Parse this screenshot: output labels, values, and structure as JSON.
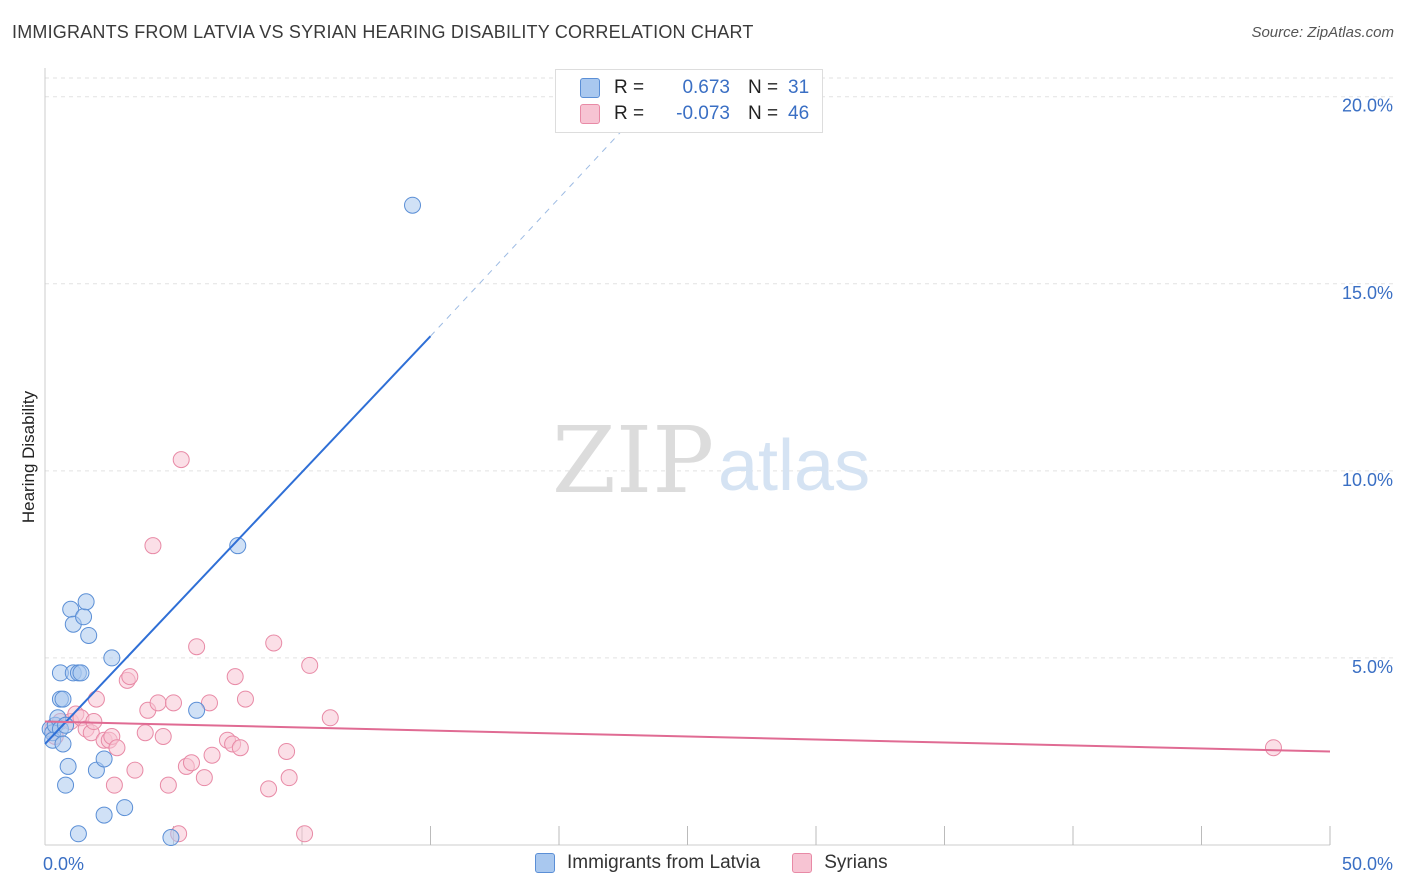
{
  "header": {
    "title": "IMMIGRANTS FROM LATVIA VS SYRIAN HEARING DISABILITY CORRELATION CHART",
    "source": "Source: ZipAtlas.com"
  },
  "watermark": {
    "part1": "ZIP",
    "part2": "atlas"
  },
  "legend": {
    "rows": [
      {
        "r_label": "R =",
        "r_value": "0.673",
        "n_label": "N =",
        "n_value": "31",
        "color": "#a9c8ef",
        "border": "#5b8fd6"
      },
      {
        "r_label": "R =",
        "r_value": "-0.073",
        "n_label": "N =",
        "n_value": "46",
        "color": "#f7c4d3",
        "border": "#e88aa6"
      }
    ]
  },
  "bottom_legend": {
    "items": [
      {
        "label": "Immigrants from Latvia",
        "color": "#a9c8ef",
        "border": "#5b8fd6"
      },
      {
        "label": "Syrians",
        "color": "#f7c4d3",
        "border": "#e88aa6"
      }
    ]
  },
  "chart_data": {
    "type": "scatter",
    "title": "IMMIGRANTS FROM LATVIA VS SYRIAN HEARING DISABILITY CORRELATION CHART",
    "xlabel": "",
    "ylabel": "Hearing Disability",
    "xlim": [
      0,
      50
    ],
    "ylim": [
      0,
      20.5
    ],
    "x_tick_labels": [
      "0.0%",
      "50.0%"
    ],
    "y_ticks": [
      5,
      10,
      15,
      20
    ],
    "y_tick_labels": [
      "5.0%",
      "10.0%",
      "15.0%",
      "20.0%"
    ],
    "series": [
      {
        "name": "Immigrants from Latvia",
        "color": "#5b8fd6",
        "fill": "#a9c8ef",
        "trend": {
          "x0": 0,
          "y0": 2.7,
          "x1": 15,
          "y1": 13.6,
          "dash_x1": 23,
          "dash_y1": 19.5,
          "color": "#2f6fd6"
        },
        "points": [
          [
            0.2,
            3.1
          ],
          [
            0.3,
            3.0
          ],
          [
            0.4,
            3.2
          ],
          [
            0.5,
            3.4
          ],
          [
            0.3,
            2.8
          ],
          [
            0.6,
            3.9
          ],
          [
            0.7,
            3.9
          ],
          [
            0.6,
            3.1
          ],
          [
            0.8,
            3.2
          ],
          [
            0.6,
            4.6
          ],
          [
            1.1,
            4.6
          ],
          [
            1.3,
            4.6
          ],
          [
            1.4,
            4.6
          ],
          [
            1.0,
            6.3
          ],
          [
            1.1,
            5.9
          ],
          [
            1.5,
            6.1
          ],
          [
            1.6,
            6.5
          ],
          [
            1.7,
            5.6
          ],
          [
            0.7,
            2.7
          ],
          [
            0.9,
            2.1
          ],
          [
            0.8,
            1.6
          ],
          [
            1.3,
            0.3
          ],
          [
            2.0,
            2.0
          ],
          [
            2.3,
            0.8
          ],
          [
            2.3,
            2.3
          ],
          [
            2.6,
            5.0
          ],
          [
            3.1,
            1.0
          ],
          [
            4.9,
            0.2
          ],
          [
            5.9,
            3.6
          ],
          [
            7.5,
            8.0
          ],
          [
            14.3,
            17.1
          ]
        ]
      },
      {
        "name": "Syrians",
        "color": "#e88aa6",
        "fill": "#f7c4d3",
        "trend": {
          "x0": 0,
          "y0": 3.3,
          "x1": 50,
          "y1": 2.5,
          "color": "#e06b93"
        },
        "points": [
          [
            0.3,
            3.1
          ],
          [
            0.4,
            2.9
          ],
          [
            0.6,
            3.3
          ],
          [
            1.0,
            3.3
          ],
          [
            1.2,
            3.5
          ],
          [
            1.4,
            3.4
          ],
          [
            1.6,
            3.1
          ],
          [
            1.8,
            3.0
          ],
          [
            1.9,
            3.3
          ],
          [
            2.0,
            3.9
          ],
          [
            2.3,
            2.8
          ],
          [
            2.5,
            2.8
          ],
          [
            2.6,
            2.9
          ],
          [
            2.8,
            2.6
          ],
          [
            2.7,
            1.6
          ],
          [
            3.2,
            4.4
          ],
          [
            3.3,
            4.5
          ],
          [
            3.5,
            2.0
          ],
          [
            3.9,
            3.0
          ],
          [
            4.0,
            3.6
          ],
          [
            4.2,
            8.0
          ],
          [
            4.4,
            3.8
          ],
          [
            4.6,
            2.9
          ],
          [
            4.8,
            1.6
          ],
          [
            5.0,
            3.8
          ],
          [
            5.2,
            0.3
          ],
          [
            5.3,
            10.3
          ],
          [
            5.5,
            2.1
          ],
          [
            5.7,
            2.2
          ],
          [
            5.9,
            5.3
          ],
          [
            6.2,
            1.8
          ],
          [
            6.4,
            3.8
          ],
          [
            6.5,
            2.4
          ],
          [
            7.1,
            2.8
          ],
          [
            7.3,
            2.7
          ],
          [
            7.4,
            4.5
          ],
          [
            7.6,
            2.6
          ],
          [
            7.8,
            3.9
          ],
          [
            8.7,
            1.5
          ],
          [
            8.9,
            5.4
          ],
          [
            9.4,
            2.5
          ],
          [
            9.5,
            1.8
          ],
          [
            10.1,
            0.3
          ],
          [
            10.3,
            4.8
          ],
          [
            11.1,
            3.4
          ],
          [
            47.8,
            2.6
          ]
        ]
      }
    ]
  }
}
